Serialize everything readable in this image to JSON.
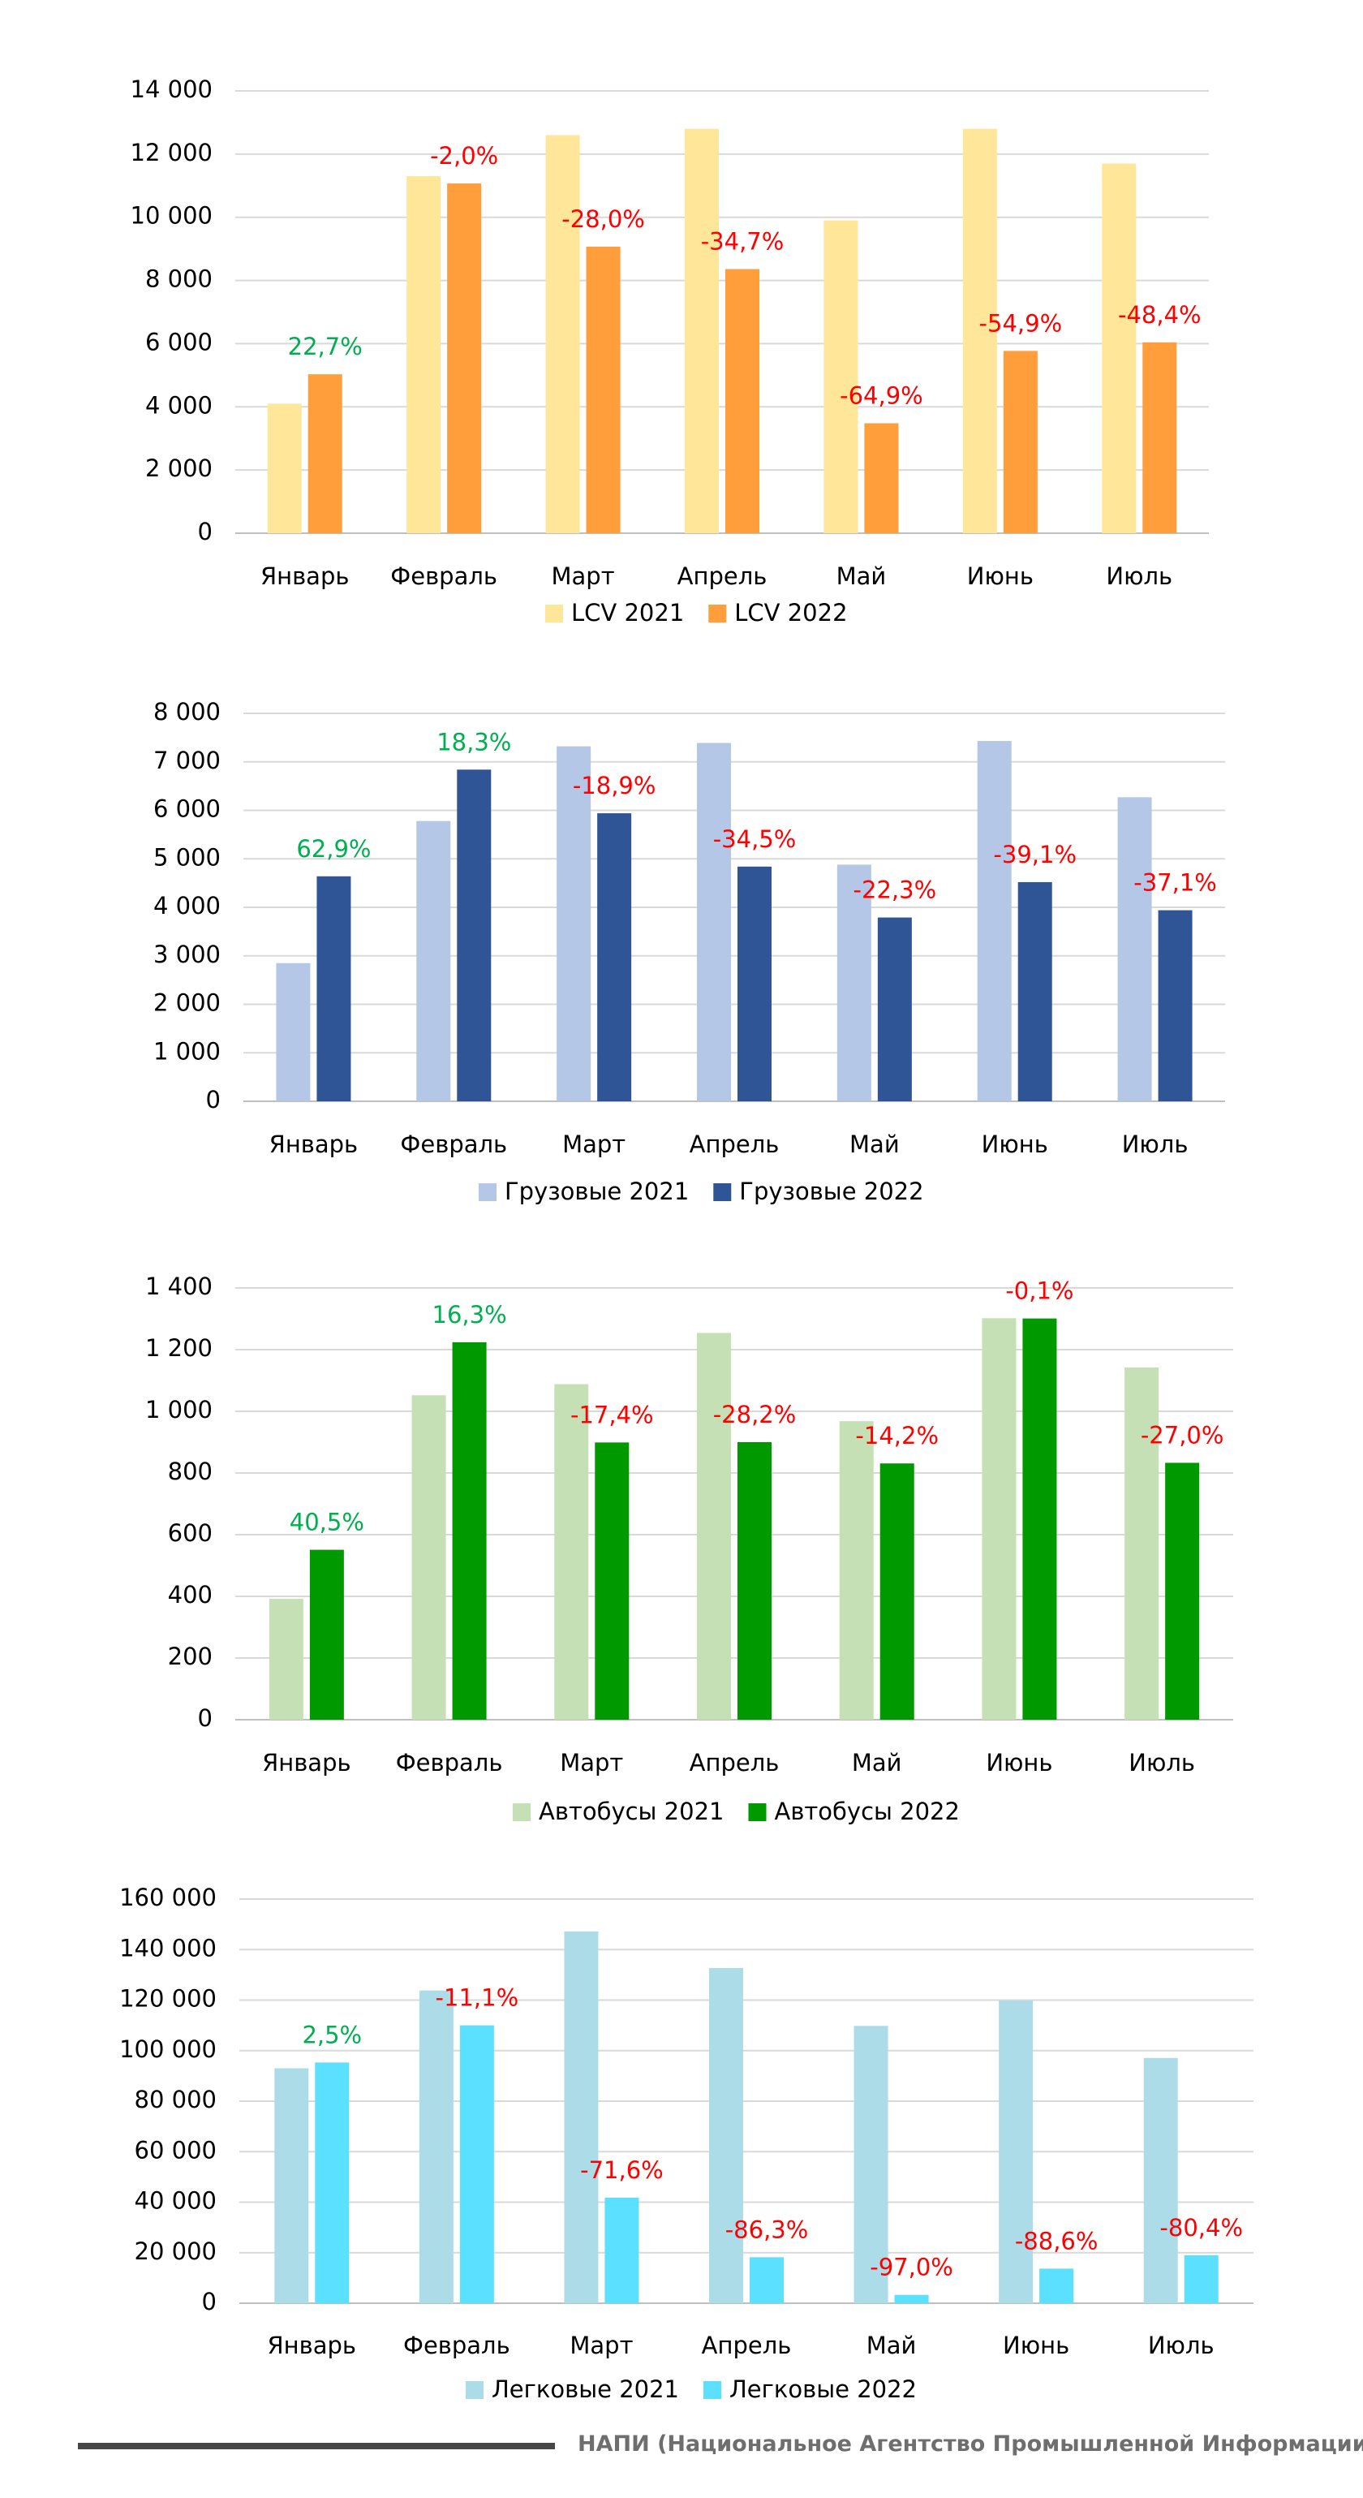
{
  "chart_data": [
    {
      "type": "bar",
      "categories": [
        "Январь",
        "Февраль",
        "Март",
        "Апрель",
        "Май",
        "Июнь",
        "Июль"
      ],
      "series": [
        {
          "name": "LCV 2021",
          "color": "#FFE699",
          "values": [
            4100,
            11300,
            12600,
            12800,
            9900,
            12800,
            11700
          ]
        },
        {
          "name": "LCV 2022",
          "color": "#FF9E3A",
          "values": [
            5030,
            11070,
            9070,
            8360,
            3480,
            5770,
            6040
          ]
        }
      ],
      "labels": [
        "22,7%",
        "-2,0%",
        "-28,0%",
        "-34,7%",
        "-64,9%",
        "-54,9%",
        "-48,4%"
      ],
      "ylim": [
        0,
        14000
      ],
      "yticks": [
        0,
        2000,
        4000,
        6000,
        8000,
        10000,
        12000,
        14000
      ],
      "ytick_labels": [
        "0",
        "2 000",
        "4 000",
        "6 000",
        "8 000",
        "10 000",
        "12 000",
        "14 000"
      ],
      "legend": "bottom",
      "grid": true
    },
    {
      "type": "bar",
      "categories": [
        "Январь",
        "Февраль",
        "Март",
        "Апрель",
        "Май",
        "Июнь",
        "Июль"
      ],
      "series": [
        {
          "name": "Грузовые 2021",
          "color": "#B4C7E7",
          "values": [
            2850,
            5780,
            7320,
            7390,
            4880,
            7430,
            6270
          ]
        },
        {
          "name": "Грузовые 2022",
          "color": "#2F5597",
          "values": [
            4640,
            6840,
            5940,
            4840,
            3790,
            4520,
            3940
          ]
        }
      ],
      "labels": [
        "62,9%",
        "18,3%",
        "-18,9%",
        "-34,5%",
        "-22,3%",
        "-39,1%",
        "-37,1%"
      ],
      "ylim": [
        0,
        8000
      ],
      "yticks": [
        0,
        1000,
        2000,
        3000,
        4000,
        5000,
        6000,
        7000,
        8000
      ],
      "ytick_labels": [
        "0",
        "1 000",
        "2 000",
        "3 000",
        "4 000",
        "5 000",
        "6 000",
        "7 000",
        "8 000"
      ],
      "legend": "bottom",
      "grid": true
    },
    {
      "type": "bar",
      "categories": [
        "Январь",
        "Февраль",
        "Март",
        "Апрель",
        "Май",
        "Июнь",
        "Июль"
      ],
      "series": [
        {
          "name": "Автобусы 2021",
          "color": "#C5E0B4",
          "values": [
            392,
            1052,
            1088,
            1254,
            968,
            1302,
            1142
          ]
        },
        {
          "name": "Автобусы 2022",
          "color": "#009900",
          "values": [
            551,
            1224,
            899,
            900,
            831,
            1301,
            833
          ]
        }
      ],
      "labels": [
        "40,5%",
        "16,3%",
        "-17,4%",
        "-28,2%",
        "-14,2%",
        "-0,1%",
        "-27,0%"
      ],
      "ylim": [
        0,
        1400
      ],
      "yticks": [
        0,
        200,
        400,
        600,
        800,
        1000,
        1200,
        1400
      ],
      "ytick_labels": [
        "0",
        "200",
        "400",
        "600",
        "800",
        "1 000",
        "1 200",
        "1 400"
      ],
      "legend": "bottom",
      "grid": true
    },
    {
      "type": "bar",
      "categories": [
        "Январь",
        "Февраль",
        "Март",
        "Апрель",
        "Май",
        "Июнь",
        "Июль"
      ],
      "series": [
        {
          "name": "Легковые 2021",
          "color": "#ADDCE9",
          "values": [
            93000,
            123800,
            147200,
            132700,
            109800,
            119800,
            97100
          ]
        },
        {
          "name": "Легковые 2022",
          "color": "#5BE0FF",
          "values": [
            95300,
            110000,
            41800,
            18200,
            3300,
            13700,
            19000
          ]
        }
      ],
      "labels": [
        "2,5%",
        "-11,1%",
        "-71,6%",
        "-86,3%",
        "-97,0%",
        "-88,6%",
        "-80,4%"
      ],
      "ylim": [
        0,
        160000
      ],
      "yticks": [
        0,
        20000,
        40000,
        60000,
        80000,
        100000,
        120000,
        140000,
        160000
      ],
      "ytick_labels": [
        "0",
        "20 000",
        "40 000",
        "60 000",
        "80 000",
        "100 000",
        "120 000",
        "140 000",
        "160 000"
      ],
      "legend": "bottom",
      "grid": true
    }
  ],
  "colors": {
    "positive": "#00B050",
    "negative": "#FF0000",
    "grid": "#D9D9D9",
    "text": "#000000"
  },
  "footer": {
    "text": "НАПИ (Национальное Агентство Промышленной Информации)"
  }
}
